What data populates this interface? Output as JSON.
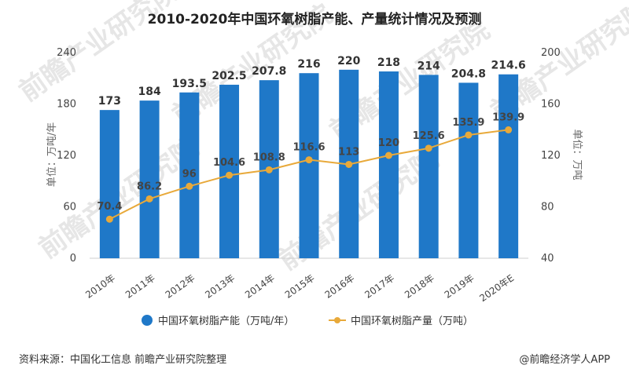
{
  "chart_data": {
    "type": "bar",
    "title": "2010-2020年中国环氧树脂产能、产量统计情况及预测",
    "categories": [
      "2010年",
      "2011年",
      "2012年",
      "2013年",
      "2014年",
      "2015年",
      "2016年",
      "2017年",
      "2018年",
      "2019年",
      "2020年E"
    ],
    "series": [
      {
        "name": "中国环氧树脂产能（万吨/年）",
        "type": "bar",
        "axis": "left",
        "color": "#1f78c8",
        "values": [
          173,
          184,
          193.5,
          202.5,
          207.8,
          216,
          220,
          218,
          214,
          204.8,
          214.6
        ],
        "labels": [
          "173",
          "184",
          "193.5",
          "202.5",
          "207.8",
          "216",
          "220",
          "218",
          "214",
          "204.8",
          "214.6"
        ]
      },
      {
        "name": "中国环氧树脂产量（万吨）",
        "type": "line",
        "axis": "right",
        "color": "#e8a93a",
        "values": [
          70.4,
          86.2,
          96,
          104.6,
          108.8,
          116.6,
          113,
          120,
          125.6,
          135.9,
          139.9
        ],
        "labels": [
          "70.4",
          "86.2",
          "96",
          "104.6",
          "108.8",
          "116.6",
          "113",
          "120",
          "125.6",
          "135.9",
          "139.9"
        ]
      }
    ],
    "y_left": {
      "label": "单位：万吨/年",
      "range": [
        0,
        240
      ],
      "ticks": [
        "0",
        "60",
        "120",
        "180",
        "240"
      ]
    },
    "y_right": {
      "label": "单位：万吨",
      "range": [
        40,
        200
      ],
      "ticks": [
        "40",
        "80",
        "120",
        "160",
        "200"
      ]
    },
    "grid": false,
    "legend_position": "bottom"
  },
  "footer": {
    "source": "资料来源：中国化工信息 前瞻产业研究院整理",
    "credit": "@前瞻经济学人APP"
  },
  "watermark": {
    "text": "前瞻产业研究院"
  }
}
